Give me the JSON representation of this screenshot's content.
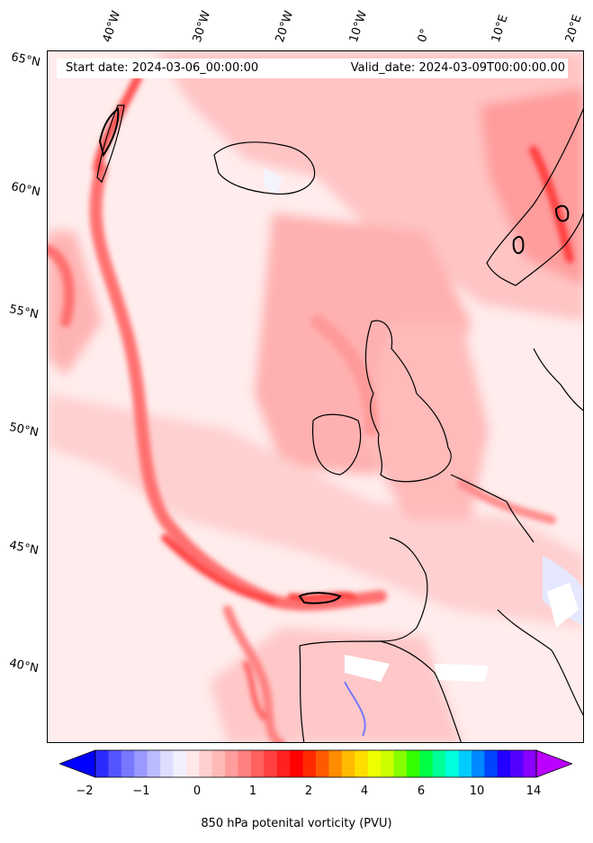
{
  "map": {
    "start_date": "Start date: 2024-03-06_00:00:00",
    "valid_date": "Valid_date: 2024-03-09T00:00:00.00"
  },
  "longitudes": [
    "40°W",
    "30°W",
    "20°W",
    "10°W",
    "0°",
    "10°E",
    "20°E"
  ],
  "latitudes": [
    "65°N",
    "60°N",
    "55°N",
    "50°N",
    "45°N",
    "40°N"
  ],
  "colorbar": {
    "ticks": [
      "−2",
      "−1",
      "0",
      "1",
      "2",
      "4",
      "6",
      "10",
      "14"
    ],
    "label": "850 hPa potenital vorticity (PVU)",
    "colors": [
      "#0000ff",
      "#2b2bff",
      "#5555ff",
      "#7777ff",
      "#9999ff",
      "#bbbbff",
      "#ddddff",
      "#f0f0ff",
      "#ffe8e8",
      "#ffd0d0",
      "#ffb8b8",
      "#ff9c9c",
      "#ff8080",
      "#ff6060",
      "#ff4040",
      "#ff2020",
      "#ff0000",
      "#ff2a00",
      "#ff5a00",
      "#ff8c00",
      "#ffbb00",
      "#ffdd00",
      "#eeff00",
      "#ccff00",
      "#88ff00",
      "#33ff00",
      "#00ff44",
      "#00ff99",
      "#00ffdd",
      "#00ccff",
      "#0088ff",
      "#0044ff",
      "#2200ff",
      "#5500ff",
      "#8800ff",
      "#bb00ff"
    ]
  }
}
